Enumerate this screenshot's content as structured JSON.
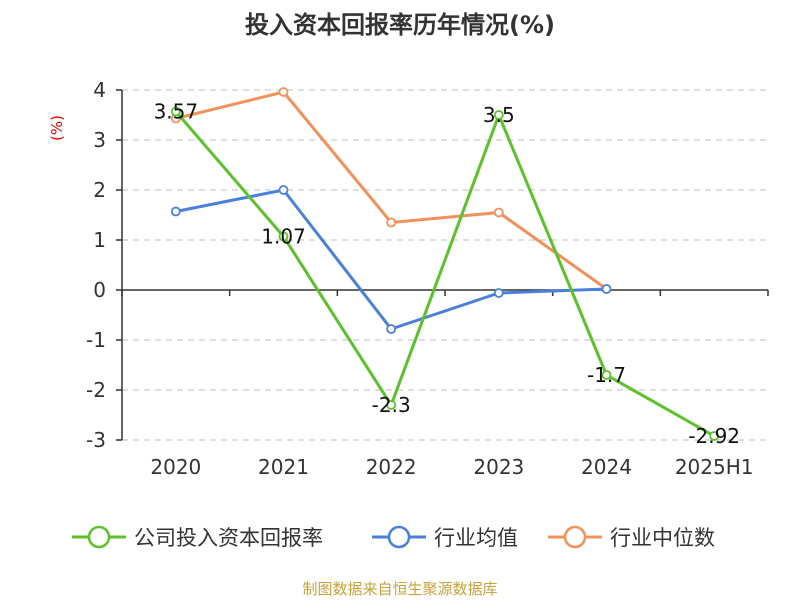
{
  "chart_data": {
    "type": "line",
    "title": "投入资本回报率历年情况(%)",
    "unit_label": "(%)",
    "categories": [
      "2020",
      "2021",
      "2022",
      "2023",
      "2024",
      "2025H1"
    ],
    "ylim": [
      -3,
      4
    ],
    "yticks": [
      "4",
      "3",
      "2",
      "1",
      "0",
      "-1",
      "-2",
      "-3"
    ],
    "grid": "horizontal-dashed",
    "legend_position": "bottom",
    "series": [
      {
        "name": "公司投入资本回报率",
        "color": "#5cc12a",
        "values": [
          3.57,
          1.07,
          -2.3,
          3.5,
          -1.7,
          -2.92
        ],
        "labels": [
          "3.57",
          "1.07",
          "-2.3",
          "3.5",
          "-1.7",
          "-2.92"
        ]
      },
      {
        "name": "行业均值",
        "color": "#4a7fdc",
        "values": [
          1.57,
          2.0,
          -0.78,
          -0.06,
          0.02,
          null
        ]
      },
      {
        "name": "行业中位数",
        "color": "#f4905a",
        "values": [
          3.43,
          3.96,
          1.35,
          1.55,
          0.02,
          null
        ]
      }
    ],
    "source": "制图数据来自恒生聚源数据库"
  }
}
